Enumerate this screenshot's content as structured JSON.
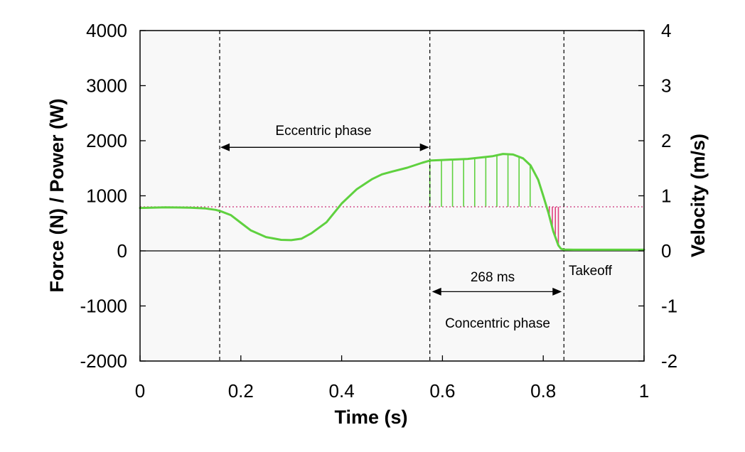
{
  "chart_data": {
    "type": "line",
    "xlabel": "Time (s)",
    "ylabel": "Force (N) / Power (W)",
    "y2label": "Velocity (m/s)",
    "xlim": [
      0,
      1
    ],
    "ylim": [
      -2000,
      4000
    ],
    "y2lim": [
      -2,
      4
    ],
    "x_ticks": [
      {
        "value": 0,
        "label": "0"
      },
      {
        "value": 0.2,
        "label": "0.2"
      },
      {
        "value": 0.4,
        "label": "0.4"
      },
      {
        "value": 0.6,
        "label": "0.6"
      },
      {
        "value": 0.8,
        "label": "0.8"
      },
      {
        "value": 1,
        "label": "1"
      }
    ],
    "y_ticks": [
      {
        "value": 4000,
        "label": "4000"
      },
      {
        "value": 3000,
        "label": "3000"
      },
      {
        "value": 2000,
        "label": "2000"
      },
      {
        "value": 1000,
        "label": "1000"
      },
      {
        "value": 0,
        "label": "0"
      },
      {
        "value": -1000,
        "label": "-1000"
      },
      {
        "value": -2000,
        "label": "-2000"
      }
    ],
    "y2_ticks": [
      {
        "value": 4,
        "label": "4"
      },
      {
        "value": 3,
        "label": "3"
      },
      {
        "value": 2,
        "label": "2"
      },
      {
        "value": 1,
        "label": "1"
      },
      {
        "value": 0,
        "label": "0"
      },
      {
        "value": -1,
        "label": "-1"
      },
      {
        "value": -2,
        "label": "-2"
      }
    ],
    "grid": false,
    "colors": {
      "force": "#5fd13f",
      "body_weight": "#cc3377",
      "below_weight_fill": "#e0407e",
      "zero_line": "#000000",
      "phase_line": "#000000",
      "plot_background": "#f8f8f8"
    },
    "body_weight": 800,
    "force_series": {
      "x": [
        0,
        0.05,
        0.1,
        0.13,
        0.15,
        0.16,
        0.18,
        0.2,
        0.22,
        0.25,
        0.28,
        0.3,
        0.32,
        0.34,
        0.37,
        0.4,
        0.43,
        0.46,
        0.48,
        0.5,
        0.53,
        0.56,
        0.575,
        0.6,
        0.65,
        0.7,
        0.72,
        0.74,
        0.76,
        0.775,
        0.79,
        0.8,
        0.81,
        0.82,
        0.83,
        0.835,
        0.84,
        0.86,
        0.9,
        0.95,
        1
      ],
      "y": [
        780,
        790,
        785,
        770,
        745,
        720,
        650,
        510,
        370,
        250,
        200,
        195,
        220,
        320,
        520,
        860,
        1120,
        1300,
        1390,
        1440,
        1510,
        1600,
        1640,
        1650,
        1670,
        1720,
        1760,
        1750,
        1680,
        1550,
        1290,
        1000,
        700,
        350,
        100,
        40,
        25,
        20,
        20,
        20,
        20
      ]
    },
    "concentric_above_weight_lines_x": [
      0.575,
      0.598,
      0.62,
      0.642,
      0.664,
      0.686,
      0.708,
      0.73,
      0.752,
      0.774
    ],
    "below_weight_lines_x": [
      0.812,
      0.818,
      0.824,
      0.83
    ],
    "phase_markers_x": [
      0.158,
      0.575,
      0.841
    ],
    "annotations": {
      "eccentric": {
        "label": "Eccentric phase",
        "from_x": 0.158,
        "to_x": 0.575,
        "y": 1880
      },
      "concentric_duration": {
        "label": "268 ms",
        "from_x": 0.575,
        "to_x": 0.841,
        "y": -740
      },
      "concentric": {
        "label": "Concentric phase"
      },
      "takeoff": {
        "label": "Takeoff"
      }
    }
  }
}
